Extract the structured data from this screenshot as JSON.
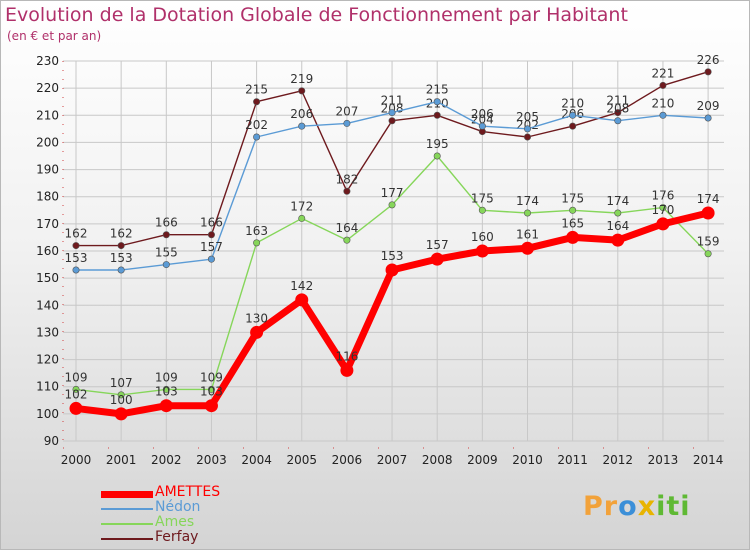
{
  "chart_data": {
    "type": "line",
    "title": "Evolution de la Dotation Globale de Fonctionnement par Habitant",
    "subtitle": "(en € et par an)",
    "categories": [
      "2000",
      "2001",
      "2002",
      "2003",
      "2004",
      "2005",
      "2006",
      "2007",
      "2008",
      "2009",
      "2010",
      "2011",
      "2012",
      "2013",
      "2014"
    ],
    "ylim": [
      90,
      230
    ],
    "yticks": [
      90,
      100,
      110,
      120,
      130,
      140,
      150,
      160,
      170,
      180,
      190,
      200,
      210,
      220,
      230
    ],
    "grid": true,
    "legend_position": "bottom-left",
    "series": [
      {
        "name": "Ferfay",
        "color": "#6e1a1e",
        "values": [
          162,
          162,
          166,
          166,
          215,
          219,
          182,
          208,
          210,
          204,
          202,
          206,
          211,
          221,
          226
        ]
      },
      {
        "name": "Nédon",
        "color": "#5b9bd5",
        "values": [
          153,
          153,
          155,
          157,
          202,
          206,
          207,
          211,
          215,
          206,
          205,
          210,
          208,
          210,
          209
        ]
      },
      {
        "name": "Ames",
        "color": "#86d65a",
        "values": [
          109,
          107,
          109,
          109,
          163,
          172,
          164,
          177,
          195,
          175,
          174,
          175,
          174,
          176,
          159
        ]
      },
      {
        "name": "AMETTES",
        "color": "#ff0000",
        "values": [
          102,
          100,
          103,
          103,
          130,
          142,
          116,
          153,
          157,
          160,
          161,
          165,
          164,
          170,
          174
        ]
      }
    ],
    "legend_order": [
      "AMETTES",
      "Nédon",
      "Ames",
      "Ferfay"
    ]
  },
  "logo": {
    "letters": [
      "P",
      "r",
      "o",
      "x",
      "i",
      "t",
      "i"
    ],
    "colors": [
      "#f2a23a",
      "#f2a23a",
      "#3b8fd8",
      "#e8b400",
      "#5fb934",
      "#5fb934",
      "#5fb934"
    ]
  }
}
